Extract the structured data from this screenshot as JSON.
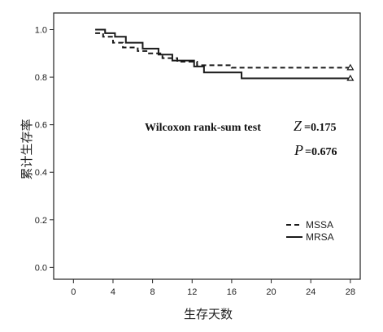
{
  "chart_data": {
    "type": "line",
    "xlabel": "生存天数",
    "ylabel": "累计生存率",
    "xlim": [
      -2,
      29
    ],
    "ylim": [
      -0.05,
      1.07
    ],
    "xticks": [
      0,
      4,
      8,
      12,
      16,
      20,
      24,
      28
    ],
    "xtick_labels": [
      "0",
      "4",
      "8",
      "12",
      "16",
      "20",
      "24",
      "28"
    ],
    "yticks": [
      0.0,
      0.2,
      0.4,
      0.6,
      0.8,
      1.0
    ],
    "ytick_labels": [
      "0.0",
      "0.2",
      "0.4",
      "0.6",
      "0.8",
      "1.0"
    ],
    "grid": false,
    "legend_position": "bottom-right",
    "series": [
      {
        "name": "MSSA",
        "line_style": "dashed",
        "step": true,
        "x": [
          2.2,
          3.0,
          4.0,
          5.0,
          6.5,
          7.5,
          9.0,
          10.5,
          12.5,
          16.0,
          28.0
        ],
        "y": [
          0.985,
          0.97,
          0.945,
          0.925,
          0.91,
          0.9,
          0.88,
          0.865,
          0.85,
          0.84,
          0.84
        ]
      },
      {
        "name": "MRSA",
        "line_style": "solid",
        "step": true,
        "x": [
          2.2,
          3.2,
          4.2,
          5.3,
          7.0,
          8.6,
          10.0,
          12.2,
          13.2,
          17.0,
          28.0
        ],
        "y": [
          1.0,
          0.985,
          0.97,
          0.945,
          0.92,
          0.895,
          0.87,
          0.845,
          0.82,
          0.795,
          0.795
        ]
      }
    ],
    "annotations": {
      "test_name": "Wilcoxon rank-sum test",
      "z_symbol": "Z",
      "z_value": "=0.175",
      "p_symbol": "P",
      "p_value": "=0.676"
    },
    "colors": {
      "line": "#1a1a1a",
      "axis": "#222222"
    }
  }
}
